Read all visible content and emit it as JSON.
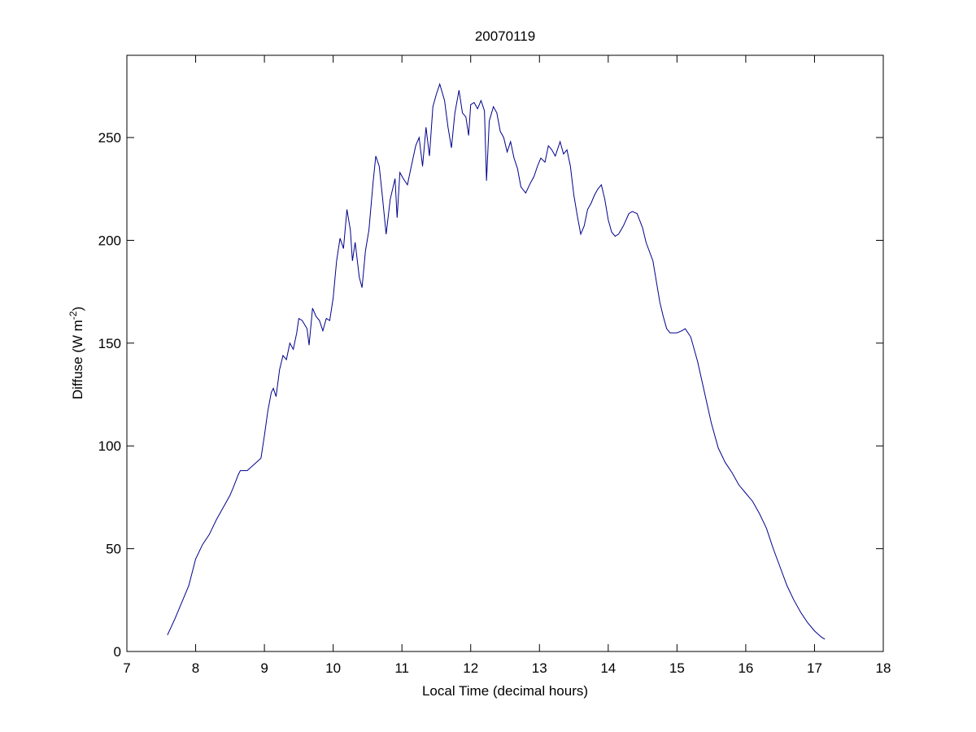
{
  "chart_data": {
    "type": "line",
    "title": "20070119",
    "xlabel": "Local Time (decimal hours)",
    "ylabel": "Diffuse (W m",
    "ylabel_superscript": "-2",
    "ylabel_suffix": ")",
    "xlim": [
      7,
      18
    ],
    "ylim": [
      0,
      290
    ],
    "x_ticks": [
      7,
      8,
      9,
      10,
      11,
      12,
      13,
      14,
      15,
      16,
      17,
      18
    ],
    "y_ticks": [
      0,
      50,
      100,
      150,
      200,
      250
    ],
    "grid": false,
    "legend": "none",
    "colors": {
      "series": "#00008b",
      "axes": "#000000",
      "background": "#ffffff"
    },
    "series": [
      {
        "points": [
          [
            7.59,
            8
          ],
          [
            7.7,
            16
          ],
          [
            7.8,
            24
          ],
          [
            7.9,
            32
          ],
          [
            8.0,
            45
          ],
          [
            8.1,
            52
          ],
          [
            8.2,
            57
          ],
          [
            8.3,
            64
          ],
          [
            8.4,
            70
          ],
          [
            8.5,
            76
          ],
          [
            8.55,
            80
          ],
          [
            8.62,
            86
          ],
          [
            8.65,
            88
          ],
          [
            8.75,
            88
          ],
          [
            8.85,
            91
          ],
          [
            8.95,
            94
          ],
          [
            9.0,
            105
          ],
          [
            9.05,
            117
          ],
          [
            9.1,
            126
          ],
          [
            9.13,
            128
          ],
          [
            9.17,
            124
          ],
          [
            9.22,
            137
          ],
          [
            9.27,
            144
          ],
          [
            9.32,
            142
          ],
          [
            9.37,
            150
          ],
          [
            9.42,
            147
          ],
          [
            9.47,
            155
          ],
          [
            9.5,
            162
          ],
          [
            9.55,
            161
          ],
          [
            9.62,
            157
          ],
          [
            9.65,
            149
          ],
          [
            9.7,
            167
          ],
          [
            9.75,
            163
          ],
          [
            9.8,
            161
          ],
          [
            9.85,
            156
          ],
          [
            9.9,
            162
          ],
          [
            9.95,
            161
          ],
          [
            10.0,
            172
          ],
          [
            10.05,
            190
          ],
          [
            10.1,
            201
          ],
          [
            10.15,
            196
          ],
          [
            10.2,
            215
          ],
          [
            10.25,
            205
          ],
          [
            10.28,
            190
          ],
          [
            10.32,
            199
          ],
          [
            10.38,
            182
          ],
          [
            10.42,
            177
          ],
          [
            10.47,
            195
          ],
          [
            10.52,
            205
          ],
          [
            10.58,
            228
          ],
          [
            10.62,
            241
          ],
          [
            10.67,
            236
          ],
          [
            10.72,
            220
          ],
          [
            10.77,
            203
          ],
          [
            10.83,
            220
          ],
          [
            10.9,
            230
          ],
          [
            10.93,
            211
          ],
          [
            10.97,
            233
          ],
          [
            11.02,
            230
          ],
          [
            11.08,
            227
          ],
          [
            11.13,
            235
          ],
          [
            11.2,
            246
          ],
          [
            11.25,
            250
          ],
          [
            11.3,
            236
          ],
          [
            11.35,
            255
          ],
          [
            11.4,
            241
          ],
          [
            11.45,
            265
          ],
          [
            11.5,
            271
          ],
          [
            11.55,
            276
          ],
          [
            11.62,
            268
          ],
          [
            11.67,
            255
          ],
          [
            11.72,
            245
          ],
          [
            11.77,
            262
          ],
          [
            11.83,
            273
          ],
          [
            11.88,
            262
          ],
          [
            11.93,
            260
          ],
          [
            11.97,
            251
          ],
          [
            12.0,
            266
          ],
          [
            12.05,
            267
          ],
          [
            12.1,
            264
          ],
          [
            12.15,
            268
          ],
          [
            12.2,
            263
          ],
          [
            12.23,
            229
          ],
          [
            12.27,
            258
          ],
          [
            12.33,
            265
          ],
          [
            12.38,
            262
          ],
          [
            12.43,
            253
          ],
          [
            12.48,
            250
          ],
          [
            12.53,
            243
          ],
          [
            12.58,
            248
          ],
          [
            12.63,
            240
          ],
          [
            12.68,
            235
          ],
          [
            12.73,
            226
          ],
          [
            12.8,
            223
          ],
          [
            12.87,
            228
          ],
          [
            12.92,
            231
          ],
          [
            12.97,
            236
          ],
          [
            13.02,
            240
          ],
          [
            13.08,
            238
          ],
          [
            13.13,
            246
          ],
          [
            13.18,
            244
          ],
          [
            13.23,
            241
          ],
          [
            13.3,
            248
          ],
          [
            13.35,
            242
          ],
          [
            13.4,
            244
          ],
          [
            13.45,
            236
          ],
          [
            13.5,
            222
          ],
          [
            13.55,
            212
          ],
          [
            13.6,
            203
          ],
          [
            13.65,
            207
          ],
          [
            13.7,
            215
          ],
          [
            13.75,
            218
          ],
          [
            13.8,
            222
          ],
          [
            13.85,
            225
          ],
          [
            13.9,
            227
          ],
          [
            13.95,
            220
          ],
          [
            14.0,
            210
          ],
          [
            14.05,
            204
          ],
          [
            14.1,
            202
          ],
          [
            14.15,
            203
          ],
          [
            14.22,
            207
          ],
          [
            14.3,
            213
          ],
          [
            14.35,
            214
          ],
          [
            14.42,
            213
          ],
          [
            14.5,
            206
          ],
          [
            14.55,
            199
          ],
          [
            14.65,
            190
          ],
          [
            14.7,
            180
          ],
          [
            14.75,
            170
          ],
          [
            14.8,
            163
          ],
          [
            14.85,
            157
          ],
          [
            14.9,
            155
          ],
          [
            15.0,
            155
          ],
          [
            15.07,
            156
          ],
          [
            15.12,
            157
          ],
          [
            15.2,
            153
          ],
          [
            15.3,
            141
          ],
          [
            15.4,
            126
          ],
          [
            15.5,
            111
          ],
          [
            15.6,
            99
          ],
          [
            15.7,
            92
          ],
          [
            15.8,
            87
          ],
          [
            15.9,
            81
          ],
          [
            16.0,
            77
          ],
          [
            16.1,
            73
          ],
          [
            16.2,
            67
          ],
          [
            16.3,
            60
          ],
          [
            16.4,
            50
          ],
          [
            16.5,
            41
          ],
          [
            16.6,
            32
          ],
          [
            16.7,
            25
          ],
          [
            16.8,
            19
          ],
          [
            16.9,
            14
          ],
          [
            17.0,
            10
          ],
          [
            17.1,
            7
          ],
          [
            17.15,
            6
          ]
        ]
      }
    ]
  }
}
